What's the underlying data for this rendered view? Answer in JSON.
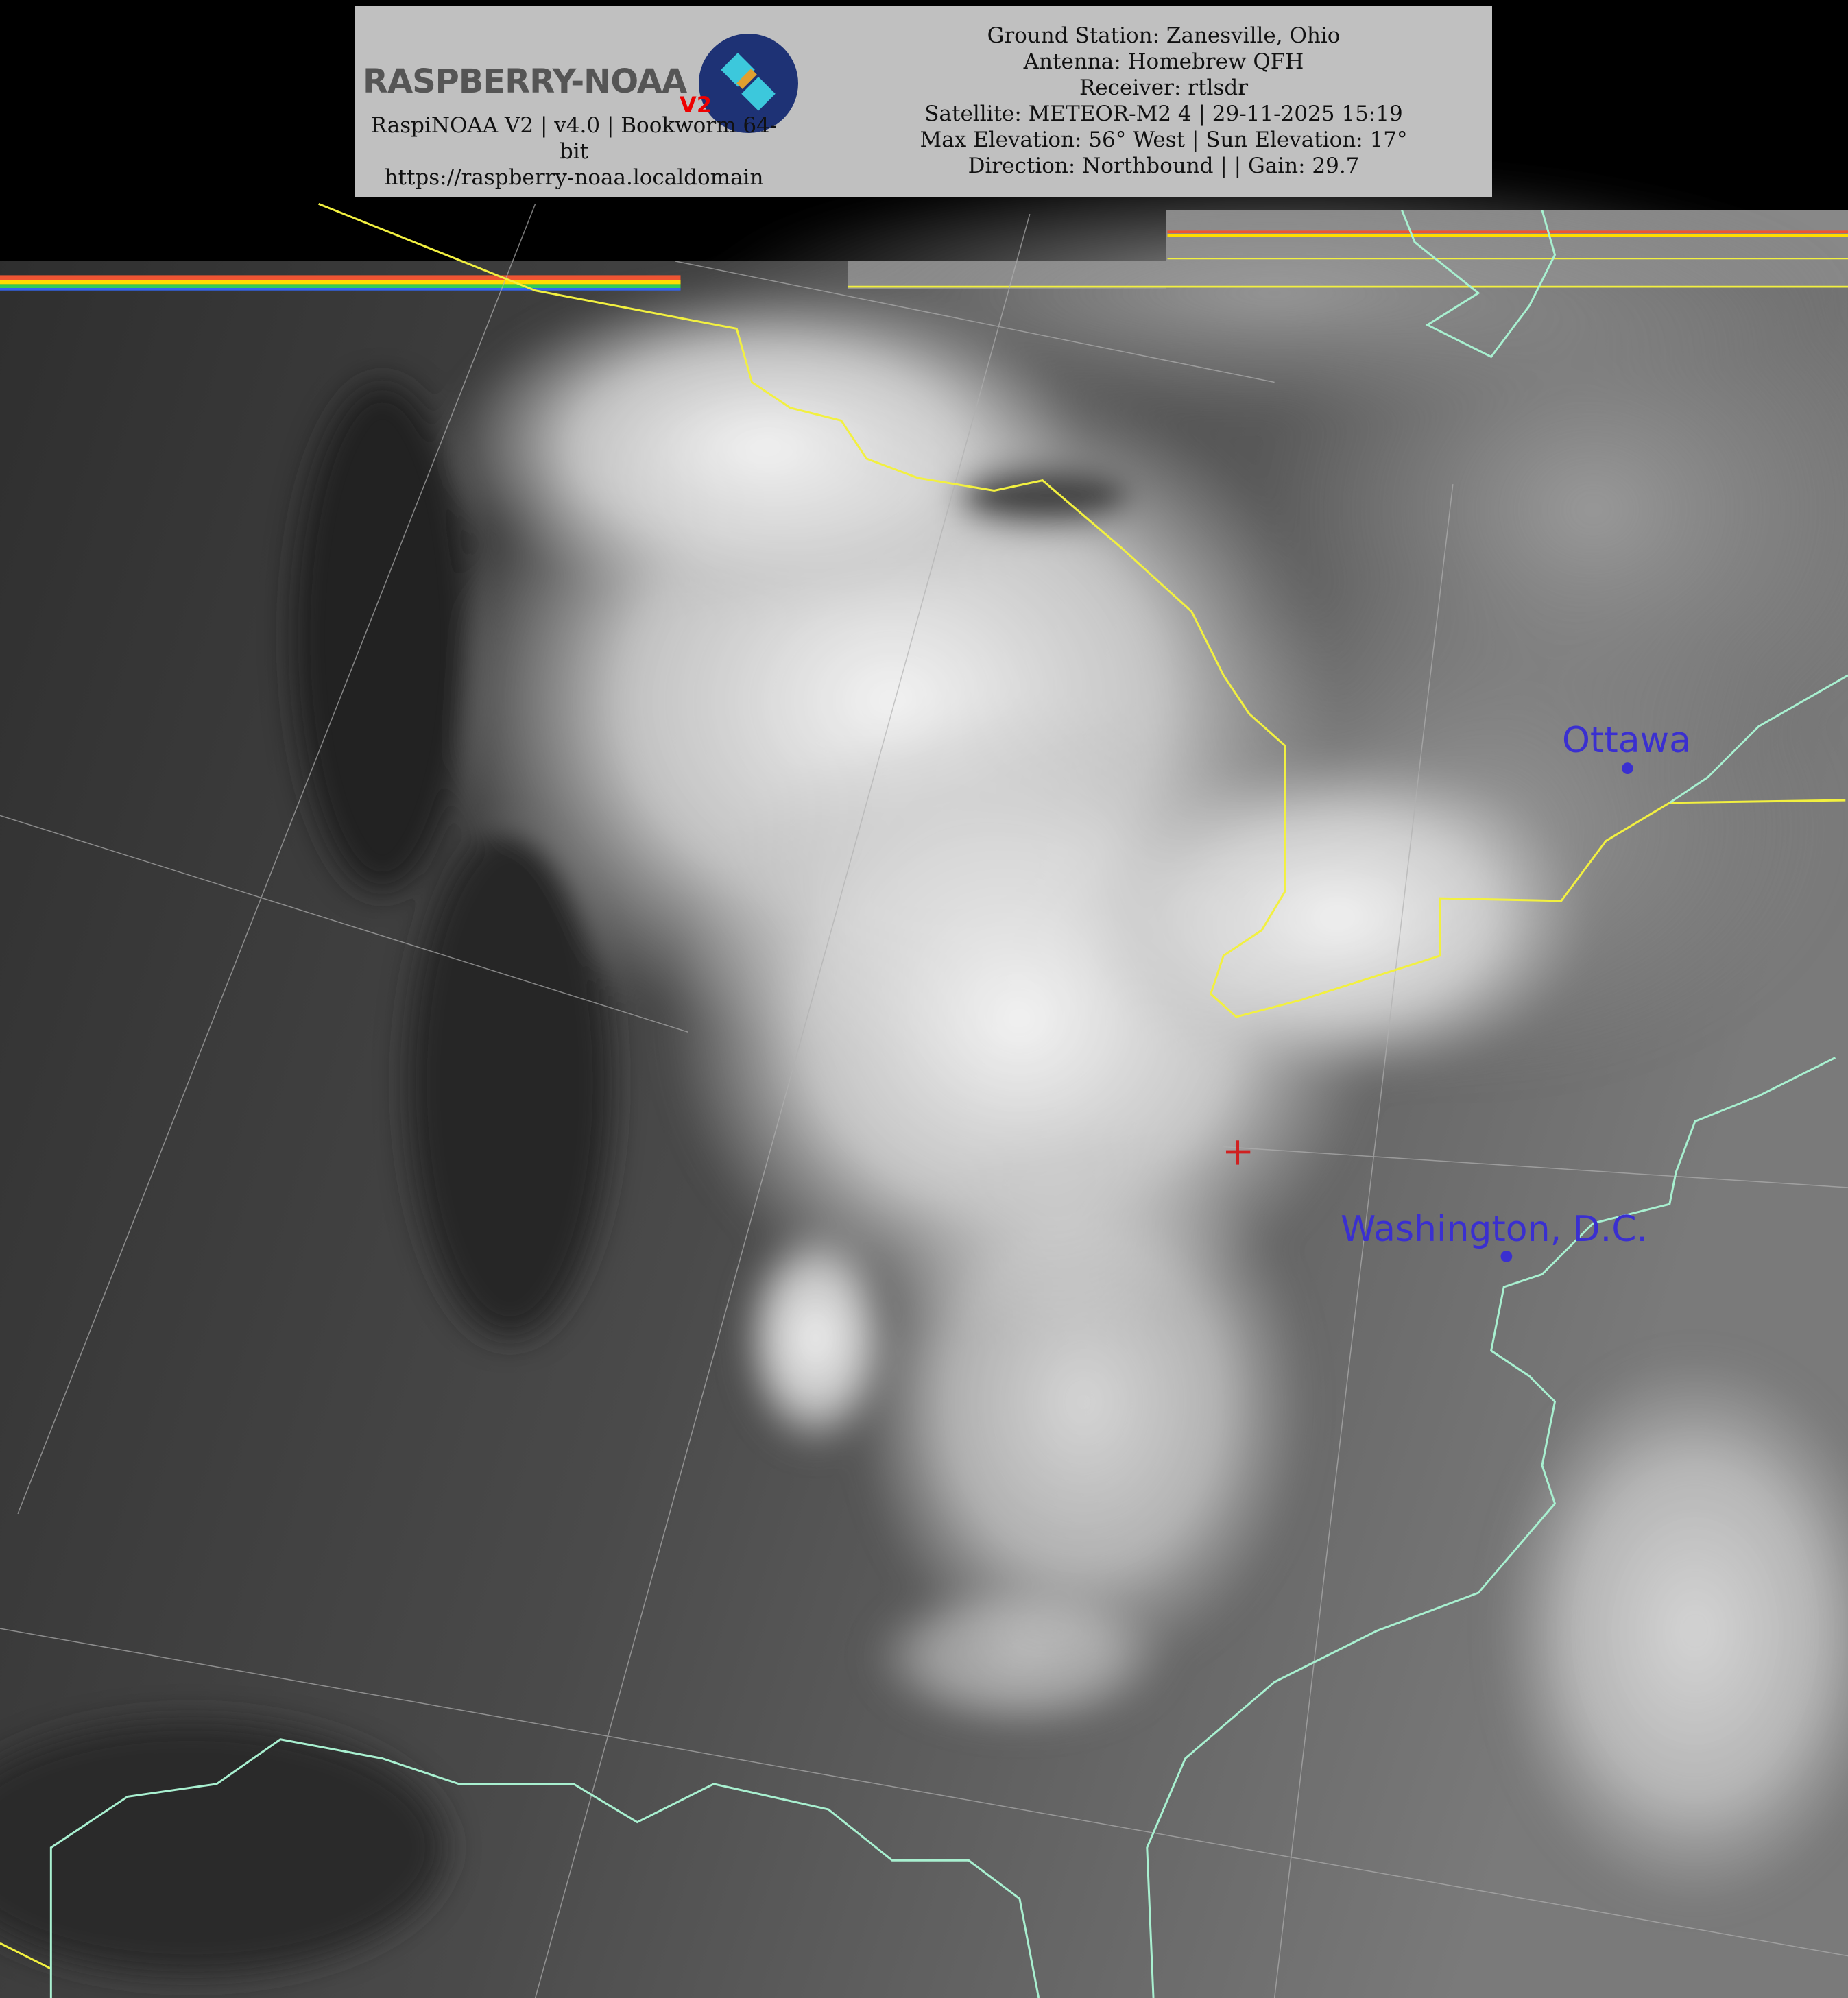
{
  "header": {
    "logo_text": "RASPBERRY-NOAA",
    "logo_badge": "V2",
    "software_line": "RaspiNOAA V2 | v4.0 | Bookworm 64-bit",
    "url": "https://raspberry-noaa.localdomain",
    "ground_station": "Ground Station: Zanesville, Ohio",
    "antenna": "Antenna: Homebrew QFH",
    "receiver": "Receiver: rtlsdr",
    "satellite": "Satellite: METEOR-M2 4 | 29-11-2025 15:19",
    "elevation": "Max Elevation: 56° West | Sun Elevation: 17°",
    "direction": "Direction: Northbound | | Gain: 29.7"
  },
  "map": {
    "cities": [
      {
        "name": "Ottawa"
      },
      {
        "name": "Washington, D.C."
      }
    ],
    "colors": {
      "border": "#f2f040",
      "coastline": "#a8f0d0",
      "city": "#3a2fd0",
      "ground_station_marker": "#d02020",
      "graticule": "#b0b0b0"
    }
  }
}
